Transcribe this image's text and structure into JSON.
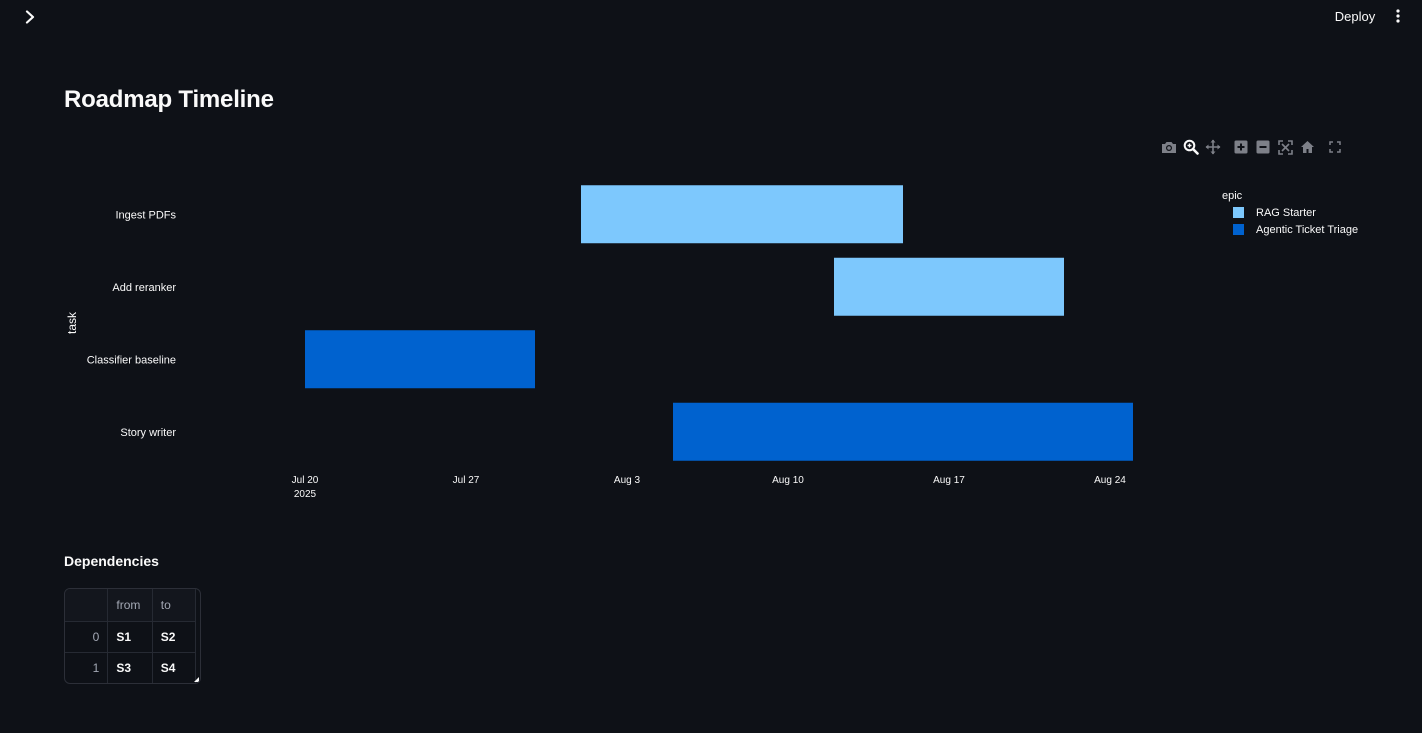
{
  "header": {
    "deploy_label": "Deploy",
    "sidebar_toggle_icon": "chevron-right-icon",
    "menu_icon": "kebab-menu-icon"
  },
  "page": {
    "title": "Roadmap Timeline"
  },
  "toolbar": {
    "icons": [
      "camera-icon",
      "zoom-icon",
      "pan-icon",
      "zoom-in-icon",
      "zoom-out-icon",
      "autoscale-icon",
      "reset-axes-icon",
      "fullscreen-icon"
    ]
  },
  "chart_data": {
    "type": "timeline",
    "xlabel": "",
    "ylabel": "task",
    "x_ticks": [
      "2025-07-20",
      "2025-07-27",
      "2025-08-03",
      "2025-08-10",
      "2025-08-17",
      "2025-08-24"
    ],
    "x_tick_labels": [
      "Jul 20",
      "Jul 27",
      "Aug 3",
      "Aug 10",
      "Aug 17",
      "Aug 24"
    ],
    "x_year_label": "2025",
    "xlim": [
      "2025-07-15",
      "2025-08-26"
    ],
    "tasks": [
      "Ingest PDFs",
      "Add reranker",
      "Classifier baseline",
      "Story writer"
    ],
    "legend_title": "epic",
    "legend_position": "top-right",
    "series": [
      {
        "name": "RAG Starter",
        "color": "#7dc8fd"
      },
      {
        "name": "Agentic Ticket Triage",
        "color": "#0062cf"
      }
    ],
    "bars": [
      {
        "task": "Ingest PDFs",
        "epic": "RAG Starter",
        "start": "2025-08-01",
        "end": "2025-08-15"
      },
      {
        "task": "Add reranker",
        "epic": "RAG Starter",
        "start": "2025-08-12",
        "end": "2025-08-22"
      },
      {
        "task": "Classifier baseline",
        "epic": "Agentic Ticket Triage",
        "start": "2025-07-20",
        "end": "2025-07-30"
      },
      {
        "task": "Story writer",
        "epic": "Agentic Ticket Triage",
        "start": "2025-08-05",
        "end": "2025-08-25"
      }
    ]
  },
  "dependencies": {
    "title": "Dependencies",
    "columns": [
      "from",
      "to"
    ],
    "rows": [
      {
        "index": "0",
        "from": "S1",
        "to": "S2"
      },
      {
        "index": "1",
        "from": "S3",
        "to": "S4"
      }
    ]
  }
}
